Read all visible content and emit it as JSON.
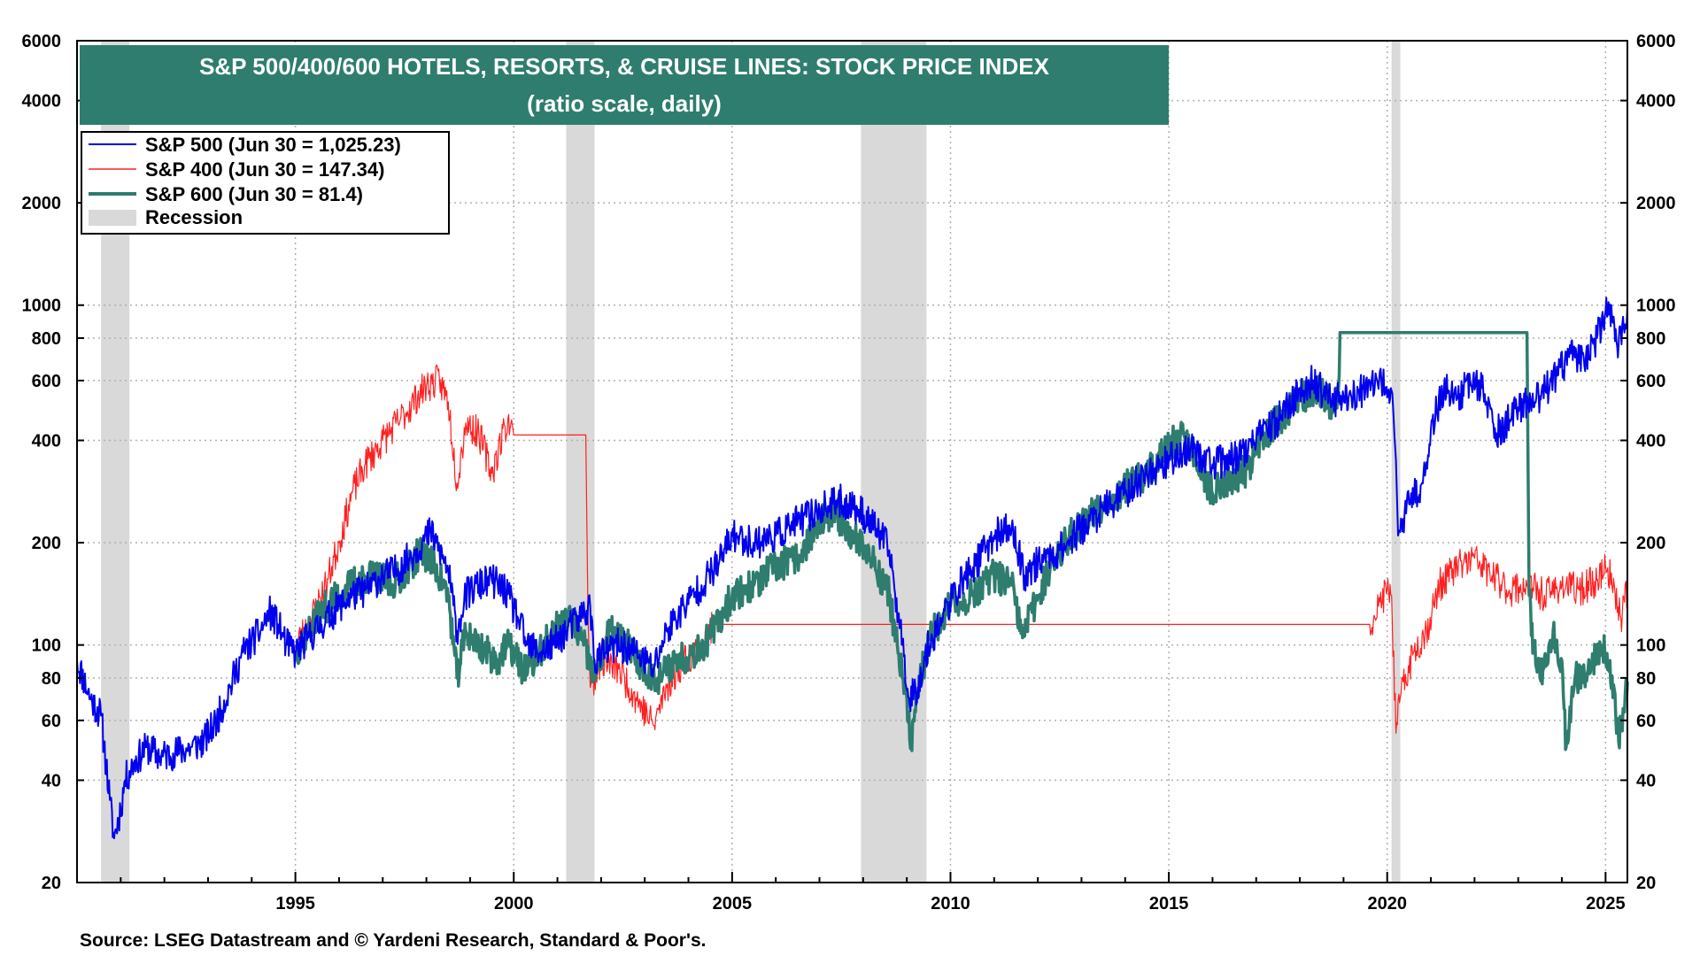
{
  "chart_data": {
    "type": "line",
    "title": "S&P 500/400/600 HOTELS, RESORTS, & CRUISE LINES: STOCK PRICE INDEX",
    "subtitle": "(ratio scale, daily)",
    "source": "Source: LSEG Datastream and © Yardeni Research, Standard & Poor's.",
    "y_scale": "log",
    "ylim": [
      20,
      6000
    ],
    "xlim": [
      1990.0,
      2025.5
    ],
    "y_ticks": [
      20,
      40,
      60,
      80,
      100,
      200,
      400,
      600,
      800,
      1000,
      2000,
      4000,
      6000
    ],
    "y_tick_labels": [
      "20",
      "40",
      "60",
      "80",
      "100",
      "200",
      "400",
      "600",
      "800",
      "1000",
      "2000",
      "4000",
      "6000"
    ],
    "x_ticks": [
      1995,
      2000,
      2005,
      2010,
      2015,
      2020,
      2025
    ],
    "x_tick_labels": [
      "1995",
      "2000",
      "2005",
      "2010",
      "2015",
      "2020",
      "2025"
    ],
    "grid": true,
    "legend_position": "top-left",
    "recessions": [
      [
        1990.55,
        1991.2
      ],
      [
        2001.2,
        2001.85
      ],
      [
        2007.95,
        2009.45
      ],
      [
        2020.1,
        2020.3
      ]
    ],
    "recession_label": "Recession",
    "colors": {
      "sp500": "#0000ee",
      "sp400": "#ff2020",
      "sp600": "#2e7d6e",
      "recession": "#d9d9d9",
      "title_bg": "#2e7d6e"
    },
    "series": [
      {
        "name": "S&P 500 (Jun 30 = 1,025.23)",
        "color": "#0000ee",
        "points": [
          [
            1990.0,
            90
          ],
          [
            1990.3,
            70
          ],
          [
            1990.55,
            62
          ],
          [
            1990.75,
            35
          ],
          [
            1990.85,
            27
          ],
          [
            1991.0,
            33
          ],
          [
            1991.1,
            40
          ],
          [
            1991.3,
            45
          ],
          [
            1991.6,
            50
          ],
          [
            1991.9,
            47
          ],
          [
            1992.2,
            48
          ],
          [
            1992.6,
            50
          ],
          [
            1992.9,
            52
          ],
          [
            1993.2,
            60
          ],
          [
            1993.5,
            75
          ],
          [
            1993.8,
            95
          ],
          [
            1994.2,
            110
          ],
          [
            1994.4,
            125
          ],
          [
            1994.6,
            115
          ],
          [
            1994.8,
            100
          ],
          [
            1995.0,
            95
          ],
          [
            1995.3,
            105
          ],
          [
            1995.6,
            115
          ],
          [
            1996.0,
            130
          ],
          [
            1996.3,
            140
          ],
          [
            1996.6,
            145
          ],
          [
            1997.0,
            160
          ],
          [
            1997.3,
            165
          ],
          [
            1997.6,
            180
          ],
          [
            1997.9,
            200
          ],
          [
            1998.1,
            215
          ],
          [
            1998.3,
            190
          ],
          [
            1998.5,
            165
          ],
          [
            1998.7,
            110
          ],
          [
            1998.9,
            140
          ],
          [
            1999.2,
            150
          ],
          [
            1999.5,
            155
          ],
          [
            1999.8,
            145
          ],
          [
            2000.1,
            120
          ],
          [
            2000.3,
            100
          ],
          [
            2000.6,
            95
          ],
          [
            2000.9,
            100
          ],
          [
            2001.2,
            110
          ],
          [
            2001.5,
            120
          ],
          [
            2001.75,
            130
          ],
          [
            2001.85,
            90
          ],
          [
            2002.1,
            95
          ],
          [
            2002.4,
            100
          ],
          [
            2002.8,
            95
          ],
          [
            2003.2,
            85
          ],
          [
            2003.5,
            110
          ],
          [
            2003.9,
            130
          ],
          [
            2004.3,
            150
          ],
          [
            2004.7,
            175
          ],
          [
            2005.0,
            210
          ],
          [
            2005.5,
            200
          ],
          [
            2006.0,
            210
          ],
          [
            2006.5,
            230
          ],
          [
            2007.0,
            250
          ],
          [
            2007.5,
            265
          ],
          [
            2007.9,
            250
          ],
          [
            2008.3,
            220
          ],
          [
            2008.6,
            190
          ],
          [
            2008.9,
            100
          ],
          [
            2009.05,
            70
          ],
          [
            2009.25,
            75
          ],
          [
            2009.5,
            100
          ],
          [
            2009.8,
            120
          ],
          [
            2010.2,
            150
          ],
          [
            2010.6,
            175
          ],
          [
            2011.0,
            210
          ],
          [
            2011.4,
            220
          ],
          [
            2011.7,
            160
          ],
          [
            2012.0,
            175
          ],
          [
            2012.5,
            190
          ],
          [
            2013.0,
            220
          ],
          [
            2013.5,
            250
          ],
          [
            2014.0,
            280
          ],
          [
            2014.5,
            320
          ],
          [
            2015.0,
            350
          ],
          [
            2015.5,
            380
          ],
          [
            2016.0,
            340
          ],
          [
            2016.5,
            355
          ],
          [
            2017.0,
            400
          ],
          [
            2017.5,
            460
          ],
          [
            2018.0,
            560
          ],
          [
            2018.3,
            600
          ],
          [
            2018.7,
            520
          ],
          [
            2019.0,
            540
          ],
          [
            2019.5,
            560
          ],
          [
            2019.9,
            590
          ],
          [
            2020.1,
            560
          ],
          [
            2020.2,
            350
          ],
          [
            2020.25,
            210
          ],
          [
            2020.5,
            260
          ],
          [
            2020.8,
            300
          ],
          [
            2021.0,
            430
          ],
          [
            2021.3,
            570
          ],
          [
            2021.6,
            530
          ],
          [
            2021.9,
            600
          ],
          [
            2022.2,
            560
          ],
          [
            2022.5,
            420
          ],
          [
            2022.8,
            460
          ],
          [
            2023.0,
            500
          ],
          [
            2023.5,
            540
          ],
          [
            2023.9,
            620
          ],
          [
            2024.2,
            720
          ],
          [
            2024.5,
            700
          ],
          [
            2024.8,
            800
          ],
          [
            2025.0,
            960
          ],
          [
            2025.2,
            880
          ],
          [
            2025.3,
            760
          ],
          [
            2025.5,
            1000
          ]
        ]
      },
      {
        "name": "S&P 400 (Jun 30 = 147.34)",
        "color": "#ff2020",
        "points": [
          [
            1995.0,
            100
          ],
          [
            1995.3,
            115
          ],
          [
            1995.7,
            150
          ],
          [
            1996.0,
            200
          ],
          [
            1996.3,
            280
          ],
          [
            1996.6,
            340
          ],
          [
            1997.0,
            400
          ],
          [
            1997.4,
            460
          ],
          [
            1997.8,
            540
          ],
          [
            1998.0,
            580
          ],
          [
            1998.3,
            600
          ],
          [
            1998.5,
            520
          ],
          [
            1998.7,
            300
          ],
          [
            1998.9,
            450
          ],
          [
            1999.2,
            420
          ],
          [
            1999.5,
            320
          ],
          [
            1999.8,
            440
          ],
          [
            1999.95,
            460
          ],
          [
            2000.0,
            415
          ],
          [
            2001.65,
            415
          ],
          [
            2001.7,
            120
          ],
          [
            2001.75,
            75
          ],
          [
            2002.0,
            90
          ],
          [
            2002.4,
            85
          ],
          [
            2002.8,
            70
          ],
          [
            2003.2,
            58
          ],
          [
            2003.5,
            75
          ],
          [
            2003.9,
            90
          ],
          [
            2004.3,
            100
          ],
          [
            2004.6,
            115
          ],
          [
            2019.6,
            115
          ],
          [
            2019.8,
            130
          ],
          [
            2020.0,
            145
          ],
          [
            2020.1,
            140
          ],
          [
            2020.2,
            55
          ],
          [
            2020.3,
            70
          ],
          [
            2020.6,
            95
          ],
          [
            2020.9,
            110
          ],
          [
            2021.2,
            150
          ],
          [
            2021.6,
            170
          ],
          [
            2022.0,
            180
          ],
          [
            2022.4,
            160
          ],
          [
            2022.8,
            145
          ],
          [
            2023.2,
            150
          ],
          [
            2023.6,
            140
          ],
          [
            2024.0,
            150
          ],
          [
            2024.4,
            145
          ],
          [
            2024.8,
            155
          ],
          [
            2025.0,
            170
          ],
          [
            2025.2,
            150
          ],
          [
            2025.35,
            120
          ],
          [
            2025.5,
            147
          ]
        ]
      },
      {
        "name": "S&P 600 (Jun 30 = 81.4)",
        "color": "#2e7d6e",
        "points": [
          [
            1995.0,
            95
          ],
          [
            1995.3,
            110
          ],
          [
            1995.7,
            130
          ],
          [
            1996.0,
            140
          ],
          [
            1996.4,
            155
          ],
          [
            1996.8,
            160
          ],
          [
            1997.2,
            150
          ],
          [
            1997.6,
            170
          ],
          [
            1997.9,
            190
          ],
          [
            1998.2,
            170
          ],
          [
            1998.5,
            140
          ],
          [
            1998.7,
            80
          ],
          [
            1998.9,
            110
          ],
          [
            1999.2,
            100
          ],
          [
            1999.6,
            90
          ],
          [
            1999.9,
            100
          ],
          [
            2000.2,
            85
          ],
          [
            2000.5,
            90
          ],
          [
            2000.9,
            110
          ],
          [
            2001.3,
            120
          ],
          [
            2001.6,
            100
          ],
          [
            2001.85,
            80
          ],
          [
            2002.2,
            110
          ],
          [
            2002.6,
            100
          ],
          [
            2003.0,
            85
          ],
          [
            2003.3,
            80
          ],
          [
            2003.7,
            90
          ],
          [
            2004.1,
            95
          ],
          [
            2004.5,
            105
          ],
          [
            2005.0,
            140
          ],
          [
            2005.5,
            150
          ],
          [
            2006.0,
            170
          ],
          [
            2006.5,
            180
          ],
          [
            2007.0,
            230
          ],
          [
            2007.4,
            240
          ],
          [
            2007.8,
            210
          ],
          [
            2008.2,
            180
          ],
          [
            2008.6,
            140
          ],
          [
            2008.9,
            80
          ],
          [
            2009.1,
            52
          ],
          [
            2009.3,
            80
          ],
          [
            2009.6,
            110
          ],
          [
            2010.0,
            130
          ],
          [
            2010.5,
            140
          ],
          [
            2011.0,
            160
          ],
          [
            2011.4,
            150
          ],
          [
            2011.65,
            105
          ],
          [
            2012.0,
            140
          ],
          [
            2012.5,
            190
          ],
          [
            2013.0,
            230
          ],
          [
            2013.5,
            260
          ],
          [
            2014.0,
            290
          ],
          [
            2014.5,
            320
          ],
          [
            2015.0,
            380
          ],
          [
            2015.3,
            420
          ],
          [
            2015.6,
            360
          ],
          [
            2016.0,
            280
          ],
          [
            2016.3,
            300
          ],
          [
            2016.8,
            330
          ],
          [
            2017.2,
            420
          ],
          [
            2017.6,
            470
          ],
          [
            2018.0,
            540
          ],
          [
            2018.4,
            560
          ],
          [
            2018.8,
            500
          ],
          [
            2018.9,
            620
          ],
          [
            2018.92,
            830
          ],
          [
            2023.2,
            830
          ],
          [
            2023.25,
            140
          ],
          [
            2023.35,
            100
          ],
          [
            2023.5,
            80
          ],
          [
            2023.8,
            110
          ],
          [
            2024.0,
            90
          ],
          [
            2024.1,
            50
          ],
          [
            2024.3,
            80
          ],
          [
            2024.6,
            85
          ],
          [
            2024.9,
            100
          ],
          [
            2025.1,
            90
          ],
          [
            2025.3,
            52
          ],
          [
            2025.4,
            65
          ],
          [
            2025.5,
            78
          ]
        ]
      }
    ]
  }
}
